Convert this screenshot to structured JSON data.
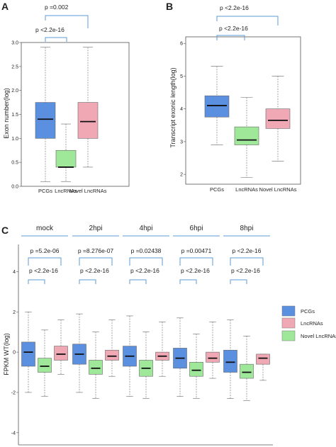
{
  "panels": {
    "A": {
      "letter": "A",
      "ylabel": "Exon number(log)",
      "annotations": [
        "p =0.002",
        "p <2.2e-16"
      ]
    },
    "B": {
      "letter": "B",
      "ylabel": "Transcript exonic length(log)",
      "annotations": [
        "p <2.2e-16",
        "p <2.2e-16"
      ]
    },
    "C": {
      "letter": "C",
      "ylabel": "FPKM WT(log)",
      "timepoints": [
        "mock",
        "2hpi",
        "4hpi",
        "6hpi",
        "8hpi"
      ],
      "annotations_top": [
        "p =5.2e-06",
        "p =8.276e-07",
        "p =0.02438",
        "p =0.00471",
        "p <2.2e-16"
      ],
      "annotations_bottom": [
        "p <2.2e-16",
        "p <2.2e-16",
        "p <2.2e-16",
        "p <2.2e-16",
        "p <2.2e-16"
      ]
    }
  },
  "legend": [
    "PCGs",
    "LncRNAs",
    "Novel LncRNAs"
  ],
  "colors": {
    "PCGs": "#5b8fe0",
    "LncRNAs": "#f0a8b4",
    "Novel LncRNAs": "#9fe89a",
    "bracket": "#5b9bd5"
  },
  "chart_data": [
    {
      "type": "box",
      "panel": "A",
      "ylabel": "Exon number(log)",
      "ylim": [
        0,
        3
      ],
      "yticks": [
        0.0,
        0.5,
        1.0,
        1.5,
        2.0,
        2.5,
        3.0
      ],
      "categories": [
        "PCGs",
        "LncRNAs",
        "Novel LncRNAs"
      ],
      "boxes": [
        {
          "name": "PCGs",
          "whisker_low": 0.1,
          "q1": 1.0,
          "median": 1.4,
          "q3": 1.75,
          "whisker_high": 2.9,
          "fill": "#5b8fe0"
        },
        {
          "name": "LncRNAs",
          "whisker_low": 0.1,
          "q1": 0.4,
          "median": 0.4,
          "q3": 0.75,
          "whisker_high": 1.3,
          "fill": "#9fe89a"
        },
        {
          "name": "Novel LncRNAs",
          "whisker_low": 0.4,
          "q1": 1.0,
          "median": 1.35,
          "q3": 1.75,
          "whisker_high": 2.9,
          "fill": "#f0a8b4"
        }
      ]
    },
    {
      "type": "box",
      "panel": "B",
      "ylabel": "Transcript exonic length(log)",
      "ylim": [
        1.7,
        6.2
      ],
      "yticks": [
        2,
        3,
        4,
        5,
        6
      ],
      "categories": [
        "PCGs",
        "LncRNAs",
        "Novel LncRNAs"
      ],
      "boxes": [
        {
          "name": "PCGs",
          "whisker_low": 2.9,
          "q1": 3.75,
          "median": 4.1,
          "q3": 4.4,
          "whisker_high": 5.3,
          "fill": "#5b8fe0"
        },
        {
          "name": "LncRNAs",
          "whisker_low": 1.9,
          "q1": 2.9,
          "median": 3.05,
          "q3": 3.45,
          "whisker_high": 4.35,
          "fill": "#9fe89a"
        },
        {
          "name": "Novel LncRNAs",
          "whisker_low": 2.4,
          "q1": 3.4,
          "median": 3.65,
          "q3": 4.0,
          "whisker_high": 5.0,
          "fill": "#f0a8b4"
        }
      ]
    },
    {
      "type": "box",
      "panel": "C",
      "ylabel": "FPKM WT(log)",
      "ylim": [
        -4.5,
        5
      ],
      "yticks": [
        -4,
        -2,
        0,
        2,
        4
      ],
      "categories": [
        "mock",
        "2hpi",
        "4hpi",
        "6hpi",
        "8hpi"
      ],
      "series": [
        {
          "name": "PCGs",
          "fill": "#5b8fe0",
          "boxes": [
            {
              "whisker_low": -2.0,
              "q1": -0.7,
              "median": 0.0,
              "q3": 0.5,
              "whisker_high": 2.0
            },
            {
              "whisker_low": -2.0,
              "q1": -0.6,
              "median": -0.1,
              "q3": 0.4,
              "whisker_high": 1.9
            },
            {
              "whisker_low": -2.2,
              "q1": -0.7,
              "median": -0.2,
              "q3": 0.3,
              "whisker_high": 1.8
            },
            {
              "whisker_low": -2.2,
              "q1": -0.8,
              "median": -0.3,
              "q3": 0.2,
              "whisker_high": 1.7
            },
            {
              "whisker_low": -2.3,
              "q1": -1.0,
              "median": -0.5,
              "q3": 0.1,
              "whisker_high": 1.6
            }
          ]
        },
        {
          "name": "Novel LncRNAs",
          "fill": "#9fe89a",
          "boxes": [
            {
              "whisker_low": -2.2,
              "q1": -1.0,
              "median": -0.7,
              "q3": -0.3,
              "whisker_high": 1.1
            },
            {
              "whisker_low": -2.3,
              "q1": -1.1,
              "median": -0.8,
              "q3": -0.4,
              "whisker_high": 1.0
            },
            {
              "whisker_low": -2.3,
              "q1": -1.2,
              "median": -0.8,
              "q3": -0.4,
              "whisker_high": 1.0
            },
            {
              "whisker_low": -2.3,
              "q1": -1.2,
              "median": -0.9,
              "q3": -0.5,
              "whisker_high": 0.9
            },
            {
              "whisker_low": -2.4,
              "q1": -1.3,
              "median": -1.0,
              "q3": -0.6,
              "whisker_high": 0.8
            }
          ]
        },
        {
          "name": "LncRNAs",
          "fill": "#f0a8b4",
          "boxes": [
            {
              "whisker_low": -1.1,
              "q1": -0.4,
              "median": -0.1,
              "q3": 0.3,
              "whisker_high": 1.6
            },
            {
              "whisker_low": -1.2,
              "q1": -0.4,
              "median": -0.2,
              "q3": 0.1,
              "whisker_high": 1.6
            },
            {
              "whisker_low": -1.2,
              "q1": -0.4,
              "median": -0.2,
              "q3": 0.0,
              "whisker_high": 1.5
            },
            {
              "whisker_low": -1.3,
              "q1": -0.5,
              "median": -0.3,
              "q3": 0.0,
              "whisker_high": 1.5
            },
            {
              "whisker_low": -1.4,
              "q1": -0.6,
              "median": -0.3,
              "q3": -0.1,
              "whisker_high": -0.1
            }
          ]
        }
      ]
    }
  ]
}
